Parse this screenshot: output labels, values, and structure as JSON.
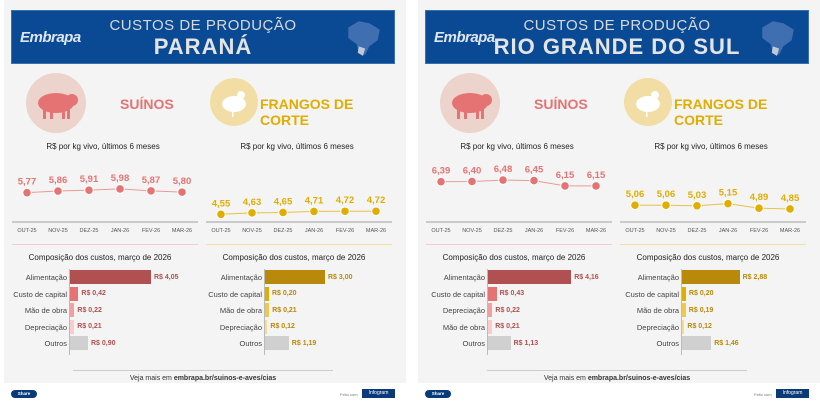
{
  "footer_common": {
    "see_more_prefix": "Veja mais em ",
    "see_more_link": "embrapa.br/suinos-e-aves/cias",
    "share": "Share",
    "made_with": "Feito com",
    "infogram": "Infogram"
  },
  "panels": [
    {
      "logo": "Embrapa",
      "title": "CUSTOS DE PRODUÇÃO",
      "state": "PARANÁ",
      "pig": {
        "label": "SUÍNOS",
        "icon": "pig-icon"
      },
      "chicken": {
        "label": "FRANGOS DE CORTE",
        "icon": "chicken-icon"
      },
      "subtitle": "R$ por kg vivo, últimos 6 meses",
      "comp_title": "Composição dos custos, março de 2026"
    },
    {
      "logo": "Embrapa",
      "title": "CUSTOS DE PRODUÇÃO",
      "state": "RIO GRANDE DO SUL",
      "pig": {
        "label": "SUÍNOS",
        "icon": "pig-icon"
      },
      "chicken": {
        "label": "FRANGOS DE CORTE",
        "icon": "chicken-icon"
      },
      "subtitle": "R$ por kg vivo, últimos 6 meses",
      "comp_title": "Composição dos custos, março de 2026"
    }
  ],
  "colors": {
    "header": "#0a4a94",
    "pig": "#e57373",
    "pig_dark": "#b05050",
    "chicken": "#e0ad00",
    "chicken_dark": "#b8890a",
    "other": "#d0d0d0"
  },
  "chart_data": [
    {
      "type": "line",
      "panel": "PARANÁ",
      "series": "SUÍNOS",
      "categories": [
        "OUT-25",
        "NOV-25",
        "DEZ-25",
        "JAN-26",
        "FEV-26",
        "MAR-26"
      ],
      "values": [
        5.77,
        5.86,
        5.91,
        5.98,
        5.87,
        5.8
      ],
      "labels": [
        "5,77",
        "5,86",
        "5,91",
        "5,98",
        "5,87",
        "5,80"
      ],
      "ylim": [
        4,
        7.5
      ]
    },
    {
      "type": "line",
      "panel": "PARANÁ",
      "series": "FRANGOS DE CORTE",
      "categories": [
        "OUT-25",
        "NOV-25",
        "DEZ-25",
        "JAN-26",
        "FEV-26",
        "MAR-26"
      ],
      "values": [
        4.55,
        4.63,
        4.65,
        4.71,
        4.72,
        4.72
      ],
      "labels": [
        "4,55",
        "4,63",
        "4,65",
        "4,71",
        "4,72",
        "4,72"
      ],
      "ylim": [
        4,
        7.5
      ]
    },
    {
      "type": "bar",
      "panel": "PARANÁ",
      "series": "SUÍNOS",
      "categories": [
        "Alimentação",
        "Custo de capital",
        "Mão de obra",
        "Depreciação",
        "Outros"
      ],
      "values": [
        4.05,
        0.42,
        0.22,
        0.21,
        0.9
      ],
      "labels": [
        "R$ 4,05",
        "R$ 0,42",
        "R$ 0,22",
        "R$ 0,21",
        "R$ 0,90"
      ]
    },
    {
      "type": "bar",
      "panel": "PARANÁ",
      "series": "FRANGOS DE CORTE",
      "categories": [
        "Alimentação",
        "Custo de capital",
        "Mão de obra",
        "Depreciação",
        "Outros"
      ],
      "values": [
        3.0,
        0.2,
        0.21,
        0.12,
        1.19
      ],
      "labels": [
        "R$ 3,00",
        "R$ 0,20",
        "R$ 0,21",
        "R$ 0,12",
        "R$ 1,19"
      ]
    },
    {
      "type": "line",
      "panel": "RIO GRANDE DO SUL",
      "series": "SUÍNOS",
      "categories": [
        "OUT-25",
        "NOV-25",
        "DEZ-25",
        "JAN-26",
        "FEV-26",
        "MAR-26"
      ],
      "values": [
        6.39,
        6.4,
        6.48,
        6.45,
        6.15,
        6.15
      ],
      "labels": [
        "6,39",
        "6,40",
        "6,48",
        "6,45",
        "6,15",
        "6,15"
      ],
      "ylim": [
        4,
        7.5
      ]
    },
    {
      "type": "line",
      "panel": "RIO GRANDE DO SUL",
      "series": "FRANGOS DE CORTE",
      "categories": [
        "OUT-25",
        "NOV-25",
        "DEZ-25",
        "JAN-26",
        "FEV-26",
        "MAR-26"
      ],
      "values": [
        5.06,
        5.06,
        5.03,
        5.15,
        4.89,
        4.85
      ],
      "labels": [
        "5,06",
        "5,06",
        "5,03",
        "5,15",
        "4,89",
        "4,85"
      ],
      "ylim": [
        4,
        7.5
      ]
    },
    {
      "type": "bar",
      "panel": "RIO GRANDE DO SUL",
      "series": "SUÍNOS",
      "categories": [
        "Alimentação",
        "Custo de capital",
        "Depreciação",
        "Mão de obra",
        "Outros"
      ],
      "values": [
        4.16,
        0.43,
        0.22,
        0.21,
        1.13
      ],
      "labels": [
        "R$ 4,16",
        "R$ 0,43",
        "R$ 0,22",
        "R$ 0,21",
        "R$ 1,13"
      ]
    },
    {
      "type": "bar",
      "panel": "RIO GRANDE DO SUL",
      "series": "FRANGOS DE CORTE",
      "categories": [
        "Alimentação",
        "Custo de capital",
        "Mão de obra",
        "Depreciação",
        "Outros"
      ],
      "values": [
        2.88,
        0.2,
        0.19,
        0.12,
        1.46
      ],
      "labels": [
        "R$ 2,88",
        "R$ 0,20",
        "R$ 0,19",
        "R$ 0,12",
        "R$ 1,46"
      ]
    }
  ]
}
